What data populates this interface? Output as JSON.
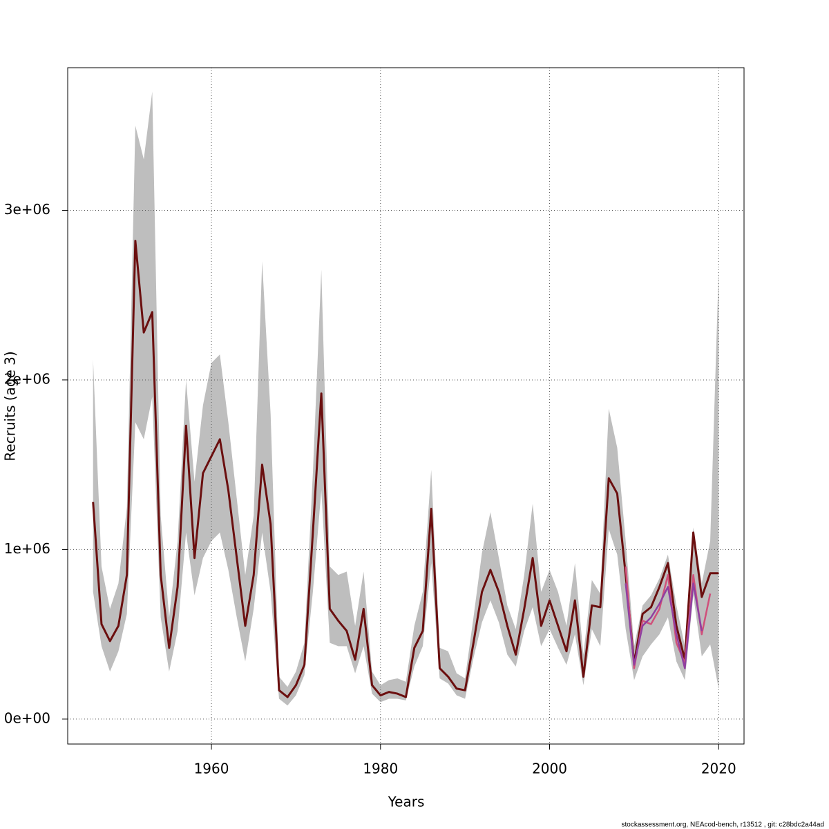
{
  "chart_data": {
    "type": "line",
    "x_label": "Years",
    "y_label": "Recruits (age 3)",
    "footer": "stockassessment.org, NEAcod-bench, r13512 , git: c28bdc2a44ad",
    "xlim": [
      1943,
      2023
    ],
    "ylim": [
      -147000,
      3841000
    ],
    "xticks": [
      1960,
      1980,
      2000,
      2020
    ],
    "yticks": [
      {
        "value": 0,
        "label": "0e+00"
      },
      {
        "value": 1000000,
        "label": "1e+06"
      },
      {
        "value": 2000000,
        "label": "2e+06"
      },
      {
        "value": 3000000,
        "label": "3e+06"
      }
    ],
    "grid": true,
    "x": [
      1946,
      1947,
      1948,
      1949,
      1950,
      1951,
      1952,
      1953,
      1954,
      1955,
      1956,
      1957,
      1958,
      1959,
      1960,
      1961,
      1962,
      1963,
      1964,
      1965,
      1966,
      1967,
      1968,
      1969,
      1970,
      1971,
      1972,
      1973,
      1974,
      1975,
      1976,
      1977,
      1978,
      1979,
      1980,
      1981,
      1982,
      1983,
      1984,
      1985,
      1986,
      1987,
      1988,
      1989,
      1990,
      1991,
      1992,
      1993,
      1994,
      1995,
      1996,
      1997,
      1998,
      1999,
      2000,
      2001,
      2002,
      2003,
      2004,
      2005,
      2006,
      2007,
      2008,
      2009,
      2010,
      2011,
      2012,
      2013,
      2014,
      2015,
      2016,
      2017,
      2018,
      2019,
      2020
    ],
    "band": {
      "color": "#bebebe",
      "upper": [
        2120000,
        900000,
        650000,
        800000,
        1250000,
        3500000,
        3300000,
        3700000,
        1200000,
        600000,
        1050000,
        2000000,
        1400000,
        1850000,
        2100000,
        2150000,
        1750000,
        1300000,
        850000,
        1200000,
        2700000,
        1800000,
        250000,
        190000,
        280000,
        450000,
        1450000,
        2650000,
        900000,
        850000,
        870000,
        550000,
        870000,
        280000,
        200000,
        230000,
        240000,
        220000,
        550000,
        750000,
        1470000,
        420000,
        400000,
        270000,
        240000,
        600000,
        980000,
        1220000,
        950000,
        670000,
        530000,
        850000,
        1270000,
        750000,
        880000,
        750000,
        550000,
        920000,
        380000,
        820000,
        740000,
        1830000,
        1600000,
        1050000,
        430000,
        670000,
        730000,
        830000,
        970000,
        670000,
        430000,
        1130000,
        800000,
        1050000,
        2650000
      ],
      "lower": [
        750000,
        430000,
        280000,
        400000,
        620000,
        1750000,
        1650000,
        1900000,
        600000,
        280000,
        520000,
        1100000,
        730000,
        950000,
        1050000,
        1100000,
        880000,
        600000,
        340000,
        650000,
        1100000,
        750000,
        120000,
        80000,
        140000,
        260000,
        750000,
        1350000,
        450000,
        430000,
        430000,
        270000,
        430000,
        150000,
        100000,
        120000,
        120000,
        110000,
        310000,
        430000,
        920000,
        240000,
        210000,
        140000,
        120000,
        360000,
        570000,
        700000,
        570000,
        380000,
        310000,
        520000,
        660000,
        430000,
        530000,
        420000,
        320000,
        500000,
        200000,
        530000,
        430000,
        1120000,
        970000,
        530000,
        230000,
        370000,
        440000,
        500000,
        600000,
        340000,
        230000,
        730000,
        370000,
        440000,
        180000
      ]
    },
    "series": [
      {
        "color": "#6b0f0f",
        "values": [
          1280000,
          560000,
          460000,
          550000,
          850000,
          2820000,
          2280000,
          2400000,
          850000,
          420000,
          780000,
          1730000,
          950000,
          1450000,
          1550000,
          1650000,
          1350000,
          950000,
          550000,
          850000,
          1500000,
          1150000,
          170000,
          130000,
          200000,
          320000,
          1100000,
          1920000,
          650000,
          580000,
          520000,
          350000,
          650000,
          200000,
          140000,
          160000,
          150000,
          130000,
          420000,
          520000,
          1240000,
          300000,
          250000,
          180000,
          170000,
          450000,
          750000,
          880000,
          750000,
          550000,
          380000,
          650000,
          950000,
          550000,
          700000,
          550000,
          400000,
          700000,
          250000,
          670000,
          660000,
          1420000,
          1330000,
          850000,
          330000,
          620000,
          660000,
          780000,
          920000,
          550000,
          350000,
          1100000,
          720000,
          860000,
          860000
        ]
      },
      {
        "color": "#d0507a",
        "x": [
          2009,
          2010,
          2011,
          2012,
          2013,
          2014,
          2015,
          2016,
          2017,
          2018,
          2019
        ],
        "values": [
          900000,
          300000,
          580000,
          560000,
          650000,
          850000,
          450000,
          330000,
          850000,
          500000,
          740000
        ]
      },
      {
        "color": "#9040a0",
        "x": [
          2009,
          2010,
          2011,
          2012,
          2013,
          2014,
          2015,
          2016,
          2017,
          2018
        ],
        "values": [
          800000,
          320000,
          550000,
          600000,
          680000,
          780000,
          500000,
          300000,
          800000,
          520000
        ]
      }
    ]
  }
}
